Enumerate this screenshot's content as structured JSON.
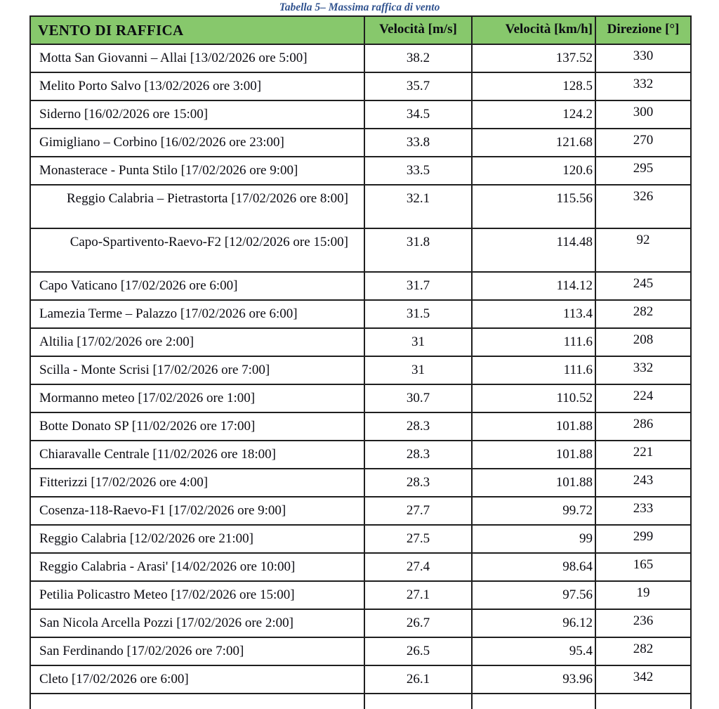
{
  "caption": "Tabella 5– Massima raffica di vento",
  "colors": {
    "header_bg": "#87C86C",
    "caption_text": "#31538F",
    "border": "#1F1F1F"
  },
  "table": {
    "columns": [
      "VENTO DI RAFFICA",
      "Velocità [m/s]",
      "Velocità [km/h]",
      "Direzione [°]"
    ],
    "rows": [
      {
        "name": "Motta San Giovanni – Allai [13/02/2026 ore 5:00]",
        "ms": "38.2",
        "kmh": "137.52",
        "dir": "330",
        "wrap": false
      },
      {
        "name": "Melito Porto Salvo [13/02/2026 ore 3:00]",
        "ms": "35.7",
        "kmh": "128.5",
        "dir": "332",
        "wrap": false
      },
      {
        "name": "Siderno [16/02/2026 ore 15:00]",
        "ms": "34.5",
        "kmh": "124.2",
        "dir": "300",
        "wrap": false
      },
      {
        "name": "Gimigliano – Corbino [16/02/2026 ore 23:00]",
        "ms": "33.8",
        "kmh": "121.68",
        "dir": "270",
        "wrap": false
      },
      {
        "name": "Monasterace - Punta Stilo [17/02/2026 ore 9:00]",
        "ms": "33.5",
        "kmh": "120.6",
        "dir": "295",
        "wrap": false
      },
      {
        "name": "Reggio Calabria – Pietrastorta [17/02/2026 ore 8:00]",
        "ms": "32.1",
        "kmh": "115.56",
        "dir": "326",
        "wrap": true
      },
      {
        "name": "Capo-Spartivento-Raevo-F2 [12/02/2026 ore 15:00]",
        "ms": "31.8",
        "kmh": "114.48",
        "dir": "92",
        "wrap": true
      },
      {
        "name": "Capo Vaticano [17/02/2026 ore 6:00]",
        "ms": "31.7",
        "kmh": "114.12",
        "dir": "245",
        "wrap": false
      },
      {
        "name": "Lamezia Terme – Palazzo [17/02/2026 ore 6:00]",
        "ms": "31.5",
        "kmh": "113.4",
        "dir": "282",
        "wrap": false
      },
      {
        "name": "Altilia [17/02/2026 ore 2:00]",
        "ms": "31",
        "kmh": "111.6",
        "dir": "208",
        "wrap": false
      },
      {
        "name": "Scilla - Monte Scrisi [17/02/2026 ore 7:00]",
        "ms": "31",
        "kmh": "111.6",
        "dir": "332",
        "wrap": false
      },
      {
        "name": "Mormanno meteo [17/02/2026 ore 1:00]",
        "ms": "30.7",
        "kmh": "110.52",
        "dir": "224",
        "wrap": false
      },
      {
        "name": "Botte Donato SP [11/02/2026 ore 17:00]",
        "ms": "28.3",
        "kmh": "101.88",
        "dir": "286",
        "wrap": false
      },
      {
        "name": "Chiaravalle Centrale [11/02/2026 ore 18:00]",
        "ms": "28.3",
        "kmh": "101.88",
        "dir": "221",
        "wrap": false
      },
      {
        "name": "Fitterizzi [17/02/2026 ore 4:00]",
        "ms": "28.3",
        "kmh": "101.88",
        "dir": "243",
        "wrap": false
      },
      {
        "name": "Cosenza-118-Raevo-F1 [17/02/2026 ore 9:00]",
        "ms": "27.7",
        "kmh": "99.72",
        "dir": "233",
        "wrap": false
      },
      {
        "name": "Reggio Calabria [12/02/2026 ore 21:00]",
        "ms": "27.5",
        "kmh": "99",
        "dir": "299",
        "wrap": false
      },
      {
        "name": "Reggio Calabria - Arasi' [14/02/2026 ore 10:00]",
        "ms": "27.4",
        "kmh": "98.64",
        "dir": "165",
        "wrap": false
      },
      {
        "name": "Petilia Policastro Meteo [17/02/2026 ore 15:00]",
        "ms": "27.1",
        "kmh": "97.56",
        "dir": "19",
        "wrap": false
      },
      {
        "name": "San Nicola Arcella Pozzi [17/02/2026 ore 2:00]",
        "ms": "26.7",
        "kmh": "96.12",
        "dir": "236",
        "wrap": false
      },
      {
        "name": "San Ferdinando [17/02/2026 ore 7:00]",
        "ms": "26.5",
        "kmh": "95.4",
        "dir": "282",
        "wrap": false
      },
      {
        "name": "Cleto [17/02/2026 ore 6:00]",
        "ms": "26.1",
        "kmh": "93.96",
        "dir": "342",
        "wrap": false
      }
    ]
  }
}
